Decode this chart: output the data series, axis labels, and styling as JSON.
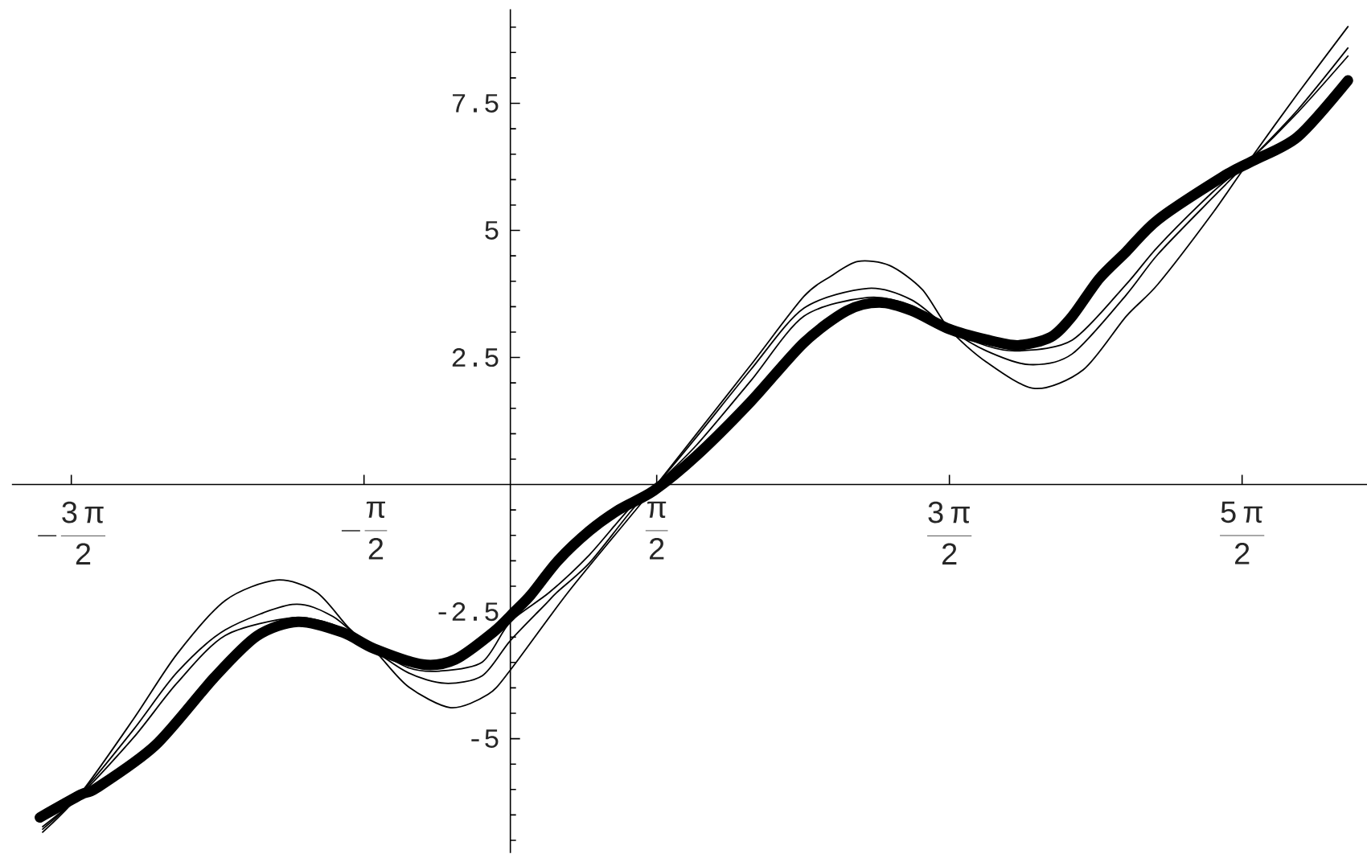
{
  "chart_data": {
    "type": "line",
    "xlim": [
      -5.35,
      9.2
    ],
    "ylim": [
      -7.25,
      9.35
    ],
    "xticks": [
      {
        "value": -4.7124,
        "label": "-\\frac{3\\,\\pi}{2}"
      },
      {
        "value": -1.5708,
        "label": "-\\frac{\\pi}{2}"
      },
      {
        "value": 1.5708,
        "label": "\\frac{\\pi}{2}"
      },
      {
        "value": 4.7124,
        "label": "\\frac{3\\,\\pi}{2}"
      },
      {
        "value": 7.854,
        "label": "\\frac{5\\,\\pi}{2}"
      }
    ],
    "yticks": [
      {
        "value": -7,
        "label": null
      },
      {
        "value": -6.5,
        "label": null
      },
      {
        "value": -6,
        "label": null
      },
      {
        "value": -5.5,
        "label": null
      },
      -5,
      {
        "value": -4.5,
        "label": null
      },
      {
        "value": -4,
        "label": null
      },
      {
        "value": -3.5,
        "label": null
      },
      {
        "value": -3,
        "label": null
      },
      -2.5,
      {
        "value": -2,
        "label": null
      },
      {
        "value": -1.5,
        "label": null
      },
      {
        "value": -1,
        "label": null
      },
      {
        "value": -0.5,
        "label": null
      },
      {
        "value": 0.5,
        "label": null
      },
      {
        "value": 1,
        "label": null
      },
      {
        "value": 1.5,
        "label": null
      },
      {
        "value": 2,
        "label": null
      },
      2.5,
      {
        "value": 3,
        "label": null
      },
      {
        "value": 3.5,
        "label": null
      },
      {
        "value": 4,
        "label": null
      },
      {
        "value": 4.5,
        "label": null
      },
      5,
      {
        "value": 5.5,
        "label": null
      },
      {
        "value": 6,
        "label": null
      },
      {
        "value": 6.5,
        "label": null
      },
      {
        "value": 7,
        "label": null
      },
      7.5,
      {
        "value": 8,
        "label": null
      },
      {
        "value": 8.5,
        "label": null
      },
      {
        "value": 9,
        "label": null
      }
    ],
    "series": [
      {
        "color": "#000000",
        "x": [
          -5.05,
          -4.61,
          -4.44,
          -3.81,
          -3.18,
          -2.72,
          -2.28,
          -1.8,
          -1.46,
          -0.94,
          -0.59,
          -0.18,
          0.05,
          0.22,
          0.51,
          0.85,
          1.17,
          1.54,
          2.0,
          2.58,
          3.15,
          3.61,
          3.96,
          4.31,
          4.71,
          5.11,
          5.45,
          5.8,
          6.03,
          6.32,
          6.61,
          6.95,
          7.64,
          7.97,
          8.45,
          8.99
        ],
        "values": [
          -6.55,
          -6.1,
          -5.97,
          -5.13,
          -3.8,
          -2.98,
          -2.7,
          -2.91,
          -3.23,
          -3.54,
          -3.44,
          -2.9,
          -2.49,
          -2.17,
          -1.5,
          -0.91,
          -0.49,
          -0.12,
          0.57,
          1.63,
          2.79,
          3.42,
          3.58,
          3.42,
          3.06,
          2.85,
          2.74,
          2.9,
          3.31,
          4.05,
          4.58,
          5.21,
          6.05,
          6.37,
          6.84,
          7.95
        ]
      },
      {
        "color": "#000000",
        "x": [
          -5.02,
          -4.61,
          -4.04,
          -3.58,
          -3.06,
          -2.51,
          -2.08,
          -1.74,
          -1.45,
          -1.1,
          -0.64,
          -0.24,
          0.0,
          0.62,
          1.35,
          1.57,
          2.0,
          2.58,
          3.15,
          3.44,
          3.73,
          4.07,
          4.42,
          4.71,
          5.11,
          5.63,
          6.15,
          6.61,
          6.95,
          7.53,
          7.93,
          8.45,
          8.99
        ],
        "values": [
          -6.84,
          -6.07,
          -4.6,
          -3.34,
          -2.28,
          -1.88,
          -2.12,
          -2.81,
          -3.28,
          -3.97,
          -4.39,
          -4.13,
          -3.65,
          -2.12,
          -0.49,
          0.0,
          1.0,
          2.35,
          3.7,
          4.1,
          4.39,
          4.31,
          3.84,
          3.06,
          2.41,
          1.89,
          2.26,
          3.31,
          3.94,
          5.32,
          6.37,
          7.69,
          9.01
        ]
      },
      {
        "color": "#000000",
        "x": [
          -5.02,
          -4.61,
          -4.04,
          -3.58,
          -3.06,
          -2.34,
          -1.91,
          -1.55,
          -1.1,
          -0.7,
          -0.3,
          0.0,
          0.39,
          0.5,
          0.85,
          1.31,
          1.57,
          2.0,
          2.58,
          3.15,
          3.84,
          4.31,
          4.71,
          5.11,
          5.57,
          6.03,
          6.61,
          6.95,
          7.53,
          7.93,
          8.45,
          8.99
        ],
        "values": [
          -6.78,
          -6.08,
          -4.81,
          -3.7,
          -2.86,
          -2.36,
          -2.59,
          -3.14,
          -3.7,
          -3.91,
          -3.76,
          -3.07,
          -2.33,
          -2.12,
          -1.54,
          -0.49,
          0.0,
          0.94,
          2.26,
          3.47,
          3.86,
          3.63,
          3.06,
          2.63,
          2.36,
          2.57,
          3.73,
          4.53,
          5.63,
          6.37,
          7.37,
          8.59
        ]
      },
      {
        "color": "#000000",
        "x": [
          -5.02,
          -4.61,
          -4.04,
          -3.58,
          -3.06,
          -2.34,
          -1.91,
          -1.55,
          -1.1,
          -0.76,
          -0.3,
          0.0,
          0.42,
          0.85,
          1.27,
          1.57,
          2.0,
          2.58,
          3.15,
          3.84,
          4.31,
          4.71,
          5.11,
          5.45,
          6.03,
          6.61,
          6.95,
          7.53,
          7.93,
          8.45,
          8.99
        ],
        "values": [
          -6.73,
          -6.1,
          -4.97,
          -3.91,
          -2.97,
          -2.62,
          -2.75,
          -3.14,
          -3.6,
          -3.67,
          -3.49,
          -2.7,
          -2.12,
          -1.38,
          -0.49,
          0.0,
          0.78,
          2.04,
          3.31,
          3.68,
          3.52,
          3.06,
          2.73,
          2.63,
          2.84,
          3.94,
          4.68,
          5.74,
          6.37,
          7.32,
          8.43
        ]
      }
    ]
  }
}
